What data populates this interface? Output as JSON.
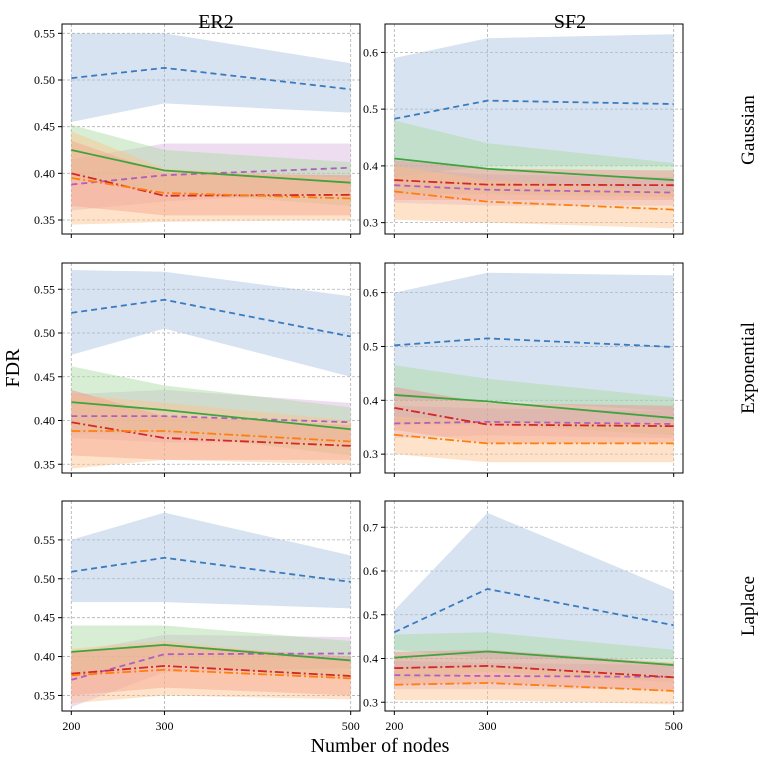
{
  "figure": {
    "ylabel": "FDR",
    "xlabel": "Number of nodes",
    "columns": [
      "ER2",
      "SF2"
    ],
    "rows": [
      "Gaussian",
      "Exponential",
      "Laplace"
    ]
  },
  "chart_data": {
    "type": "line",
    "x": [
      200,
      300,
      500
    ],
    "x_ticks": [
      200,
      300,
      500
    ],
    "xlim": [
      190,
      510
    ],
    "grid": true,
    "series_styles": [
      {
        "id": "blue",
        "color": "#3a7bbf",
        "band": "#a6c2dd",
        "dash": "6,4"
      },
      {
        "id": "purple",
        "color": "#b05fc0",
        "band": "#d9b4e0",
        "dash": "6,4"
      },
      {
        "id": "green",
        "color": "#3fa33f",
        "band": "#a9d9a0",
        "dash": ""
      },
      {
        "id": "red",
        "color": "#d62728",
        "band": "#f08c8c",
        "dash": "9,3,2,3"
      },
      {
        "id": "orange",
        "color": "#ff7f0e",
        "band": "#fcc08a",
        "dash": "9,3,2,3"
      }
    ],
    "panels": [
      {
        "row": "Gaussian",
        "col": "ER2",
        "ylim": [
          0.335,
          0.56
        ],
        "y_ticks": [
          "0.35",
          "0.40",
          "0.45",
          "0.50",
          "0.55"
        ],
        "series": [
          {
            "id": "blue",
            "values": [
              0.502,
              0.513,
              0.49
            ],
            "lower": [
              0.455,
              0.475,
              0.465
            ],
            "upper": [
              0.55,
              0.55,
              0.518
            ]
          },
          {
            "id": "purple",
            "values": [
              0.388,
              0.398,
              0.406
            ],
            "lower": [
              0.36,
              0.37,
              0.38
            ],
            "upper": [
              0.415,
              0.432,
              0.432
            ]
          },
          {
            "id": "green",
            "values": [
              0.425,
              0.403,
              0.39
            ],
            "lower": [
              0.395,
              0.38,
              0.365
            ],
            "upper": [
              0.452,
              0.425,
              0.412
            ]
          },
          {
            "id": "red",
            "values": [
              0.4,
              0.376,
              0.377
            ],
            "lower": [
              0.365,
              0.355,
              0.355
            ],
            "upper": [
              0.435,
              0.4,
              0.398
            ]
          },
          {
            "id": "orange",
            "values": [
              0.395,
              0.379,
              0.373
            ],
            "lower": [
              0.345,
              0.348,
              0.35
            ],
            "upper": [
              0.445,
              0.405,
              0.395
            ]
          }
        ]
      },
      {
        "row": "Gaussian",
        "col": "SF2",
        "ylim": [
          0.28,
          0.65
        ],
        "y_ticks": [
          "0.3",
          "0.4",
          "0.5",
          "0.6"
        ],
        "series": [
          {
            "id": "blue",
            "values": [
              0.483,
              0.515,
              0.509
            ],
            "lower": [
              0.38,
              0.4,
              0.4
            ],
            "upper": [
              0.59,
              0.625,
              0.632
            ]
          },
          {
            "id": "purple",
            "values": [
              0.366,
              0.358,
              0.353
            ],
            "lower": [
              0.335,
              0.33,
              0.33
            ],
            "upper": [
              0.395,
              0.385,
              0.38
            ]
          },
          {
            "id": "green",
            "values": [
              0.413,
              0.395,
              0.375
            ],
            "lower": [
              0.35,
              0.35,
              0.345
            ],
            "upper": [
              0.48,
              0.44,
              0.405
            ]
          },
          {
            "id": "red",
            "values": [
              0.375,
              0.367,
              0.366
            ],
            "lower": [
              0.34,
              0.34,
              0.34
            ],
            "upper": [
              0.41,
              0.395,
              0.392
            ]
          },
          {
            "id": "orange",
            "values": [
              0.355,
              0.337,
              0.323
            ],
            "lower": [
              0.305,
              0.3,
              0.29
            ],
            "upper": [
              0.4,
              0.375,
              0.355
            ]
          }
        ]
      },
      {
        "row": "Exponential",
        "col": "ER2",
        "ylim": [
          0.34,
          0.58
        ],
        "y_ticks": [
          "0.35",
          "0.40",
          "0.45",
          "0.50",
          "0.55"
        ],
        "series": [
          {
            "id": "blue",
            "values": [
              0.523,
              0.538,
              0.496
            ],
            "lower": [
              0.475,
              0.505,
              0.45
            ],
            "upper": [
              0.572,
              0.57,
              0.542
            ]
          },
          {
            "id": "purple",
            "values": [
              0.405,
              0.405,
              0.398
            ],
            "lower": [
              0.38,
              0.375,
              0.375
            ],
            "upper": [
              0.43,
              0.435,
              0.42
            ]
          },
          {
            "id": "green",
            "values": [
              0.421,
              0.412,
              0.39
            ],
            "lower": [
              0.385,
              0.385,
              0.36
            ],
            "upper": [
              0.462,
              0.44,
              0.415
            ]
          },
          {
            "id": "red",
            "values": [
              0.398,
              0.38,
              0.371
            ],
            "lower": [
              0.36,
              0.355,
              0.355
            ],
            "upper": [
              0.435,
              0.405,
              0.395
            ]
          },
          {
            "id": "orange",
            "values": [
              0.388,
              0.388,
              0.376
            ],
            "lower": [
              0.345,
              0.355,
              0.35
            ],
            "upper": [
              0.43,
              0.42,
              0.4
            ]
          }
        ]
      },
      {
        "row": "Exponential",
        "col": "SF2",
        "ylim": [
          0.265,
          0.655
        ],
        "y_ticks": [
          "0.3",
          "0.4",
          "0.5",
          "0.6"
        ],
        "series": [
          {
            "id": "blue",
            "values": [
              0.502,
              0.515,
              0.499
            ],
            "lower": [
              0.4,
              0.4,
              0.38
            ],
            "upper": [
              0.6,
              0.637,
              0.632
            ]
          },
          {
            "id": "purple",
            "values": [
              0.357,
              0.36,
              0.356
            ],
            "lower": [
              0.33,
              0.335,
              0.33
            ],
            "upper": [
              0.39,
              0.385,
              0.38
            ]
          },
          {
            "id": "green",
            "values": [
              0.41,
              0.398,
              0.367
            ],
            "lower": [
              0.355,
              0.355,
              0.335
            ],
            "upper": [
              0.465,
              0.44,
              0.405
            ]
          },
          {
            "id": "red",
            "values": [
              0.386,
              0.355,
              0.352
            ],
            "lower": [
              0.345,
              0.32,
              0.32
            ],
            "upper": [
              0.425,
              0.395,
              0.39
            ]
          },
          {
            "id": "orange",
            "values": [
              0.336,
              0.32,
              0.32
            ],
            "lower": [
              0.3,
              0.285,
              0.285
            ],
            "upper": [
              0.37,
              0.36,
              0.36
            ]
          }
        ]
      },
      {
        "row": "Laplace",
        "col": "ER2",
        "ylim": [
          0.33,
          0.6
        ],
        "y_ticks": [
          "0.35",
          "0.40",
          "0.45",
          "0.50",
          "0.55"
        ],
        "series": [
          {
            "id": "blue",
            "values": [
              0.509,
              0.527,
              0.496
            ],
            "lower": [
              0.47,
              0.47,
              0.462
            ],
            "upper": [
              0.55,
              0.585,
              0.53
            ]
          },
          {
            "id": "purple",
            "values": [
              0.37,
              0.403,
              0.404
            ],
            "lower": [
              0.335,
              0.38,
              0.385
            ],
            "upper": [
              0.405,
              0.428,
              0.425
            ]
          },
          {
            "id": "green",
            "values": [
              0.406,
              0.415,
              0.395
            ],
            "lower": [
              0.375,
              0.39,
              0.37
            ],
            "upper": [
              0.44,
              0.44,
              0.42
            ]
          },
          {
            "id": "red",
            "values": [
              0.378,
              0.388,
              0.375
            ],
            "lower": [
              0.35,
              0.36,
              0.35
            ],
            "upper": [
              0.405,
              0.415,
              0.4
            ]
          },
          {
            "id": "orange",
            "values": [
              0.376,
              0.383,
              0.372
            ],
            "lower": [
              0.34,
              0.35,
              0.345
            ],
            "upper": [
              0.41,
              0.42,
              0.395
            ]
          }
        ]
      },
      {
        "row": "Laplace",
        "col": "SF2",
        "ylim": [
          0.28,
          0.76
        ],
        "y_ticks": [
          "0.3",
          "0.4",
          "0.5",
          "0.6",
          "0.7"
        ],
        "series": [
          {
            "id": "blue",
            "values": [
              0.46,
              0.559,
              0.476
            ],
            "lower": [
              0.42,
              0.4,
              0.4
            ],
            "upper": [
              0.51,
              0.733,
              0.555
            ]
          },
          {
            "id": "purple",
            "values": [
              0.362,
              0.36,
              0.358
            ],
            "lower": [
              0.33,
              0.33,
              0.33
            ],
            "upper": [
              0.395,
              0.39,
              0.385
            ]
          },
          {
            "id": "green",
            "values": [
              0.402,
              0.416,
              0.385
            ],
            "lower": [
              0.35,
              0.37,
              0.345
            ],
            "upper": [
              0.455,
              0.46,
              0.42
            ]
          },
          {
            "id": "red",
            "values": [
              0.378,
              0.383,
              0.357
            ],
            "lower": [
              0.34,
              0.345,
              0.325
            ],
            "upper": [
              0.415,
              0.42,
              0.39
            ]
          },
          {
            "id": "orange",
            "values": [
              0.34,
              0.344,
              0.326
            ],
            "lower": [
              0.305,
              0.305,
              0.295
            ],
            "upper": [
              0.375,
              0.38,
              0.36
            ]
          }
        ]
      }
    ]
  }
}
